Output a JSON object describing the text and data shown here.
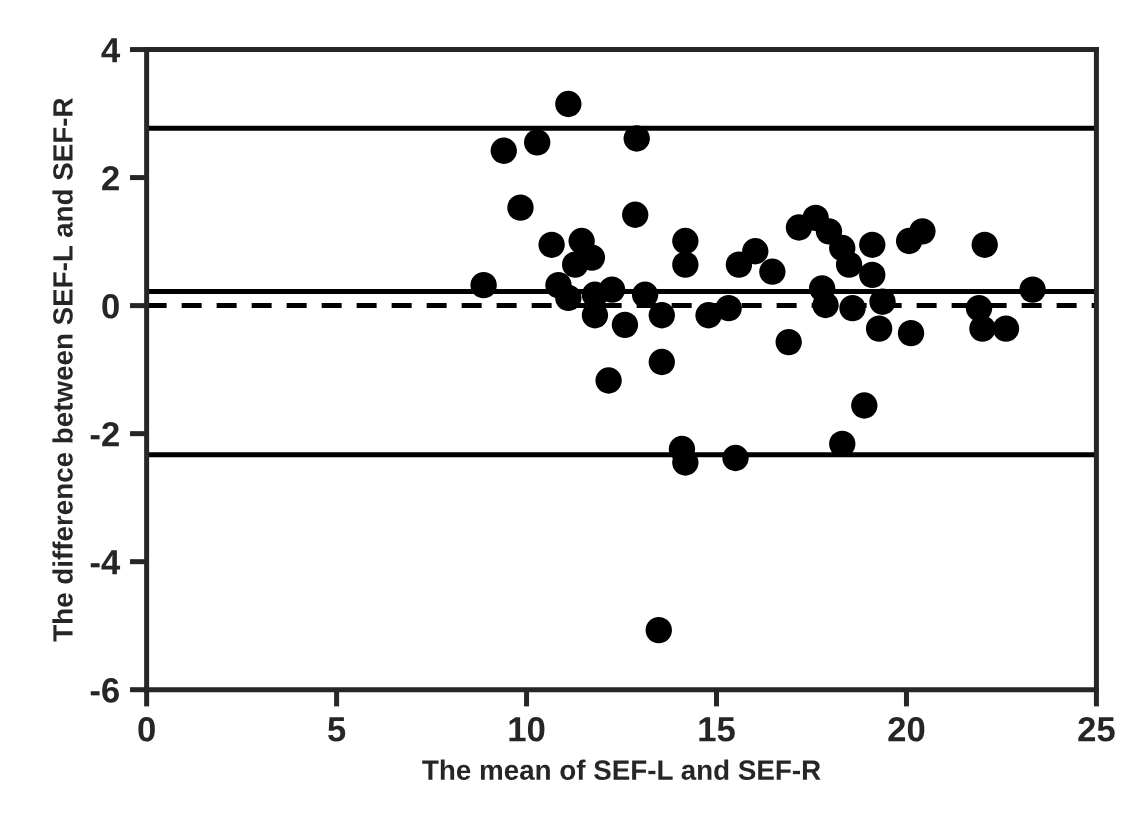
{
  "chart_data": {
    "type": "scatter",
    "xlabel": "The mean of SEF-L and SEF-R",
    "ylabel": "The difference between SEF-L and SEF-R",
    "x": [
      8.87,
      9.4,
      10.28,
      11.1,
      9.84,
      10.66,
      11.45,
      11.72,
      11.28,
      10.84,
      11.1,
      11.8,
      12.25,
      11.8,
      12.59,
      12.16,
      12.9,
      12.86,
      13.12,
      13.56,
      13.56,
      14.18,
      14.18,
      14.09,
      14.18,
      13.48,
      14.79,
      15.32,
      15.5,
      15.59,
      16.02,
      16.47,
      16.9,
      17.17,
      17.61,
      17.96,
      18.31,
      18.49,
      17.78,
      17.87,
      18.58,
      19.1,
      19.1,
      19.37,
      19.28,
      18.31,
      18.89,
      20.07,
      20.42,
      20.12,
      22.06,
      21.91,
      22.0,
      22.62,
      23.32
    ],
    "values": [
      0.32,
      2.42,
      2.55,
      3.15,
      1.53,
      0.95,
      1.01,
      0.75,
      0.64,
      0.32,
      0.12,
      0.17,
      0.25,
      -0.15,
      -0.3,
      -1.17,
      2.61,
      1.42,
      0.17,
      -0.15,
      -0.88,
      1.01,
      0.64,
      -2.24,
      -2.45,
      -5.07,
      -0.15,
      -0.04,
      -2.38,
      0.64,
      0.85,
      0.53,
      -0.57,
      1.22,
      1.37,
      1.16,
      0.9,
      0.64,
      0.27,
      0.01,
      -0.04,
      0.95,
      0.48,
      0.06,
      -0.36,
      -2.16,
      -1.56,
      1.01,
      1.16,
      -0.43,
      0.95,
      -0.04,
      -0.36,
      -0.36,
      0.25
    ],
    "color": "#000000",
    "marker": "circle",
    "xlim": [
      0,
      25
    ],
    "xticks": [
      0,
      5,
      10,
      15,
      20,
      25
    ],
    "ylim": [
      -6,
      4
    ],
    "yticks": [
      -6,
      -4,
      -2,
      0,
      2,
      4
    ],
    "ref_lines": [
      {
        "axis": "y",
        "value": 2.77,
        "line_style": "solid"
      },
      {
        "axis": "y",
        "value": 0.22,
        "line_style": "solid"
      },
      {
        "axis": "y",
        "value": -2.33,
        "line_style": "solid"
      },
      {
        "axis": "y",
        "value": 0,
        "line_style": "dashed"
      }
    ],
    "grid": false,
    "legend": false
  }
}
